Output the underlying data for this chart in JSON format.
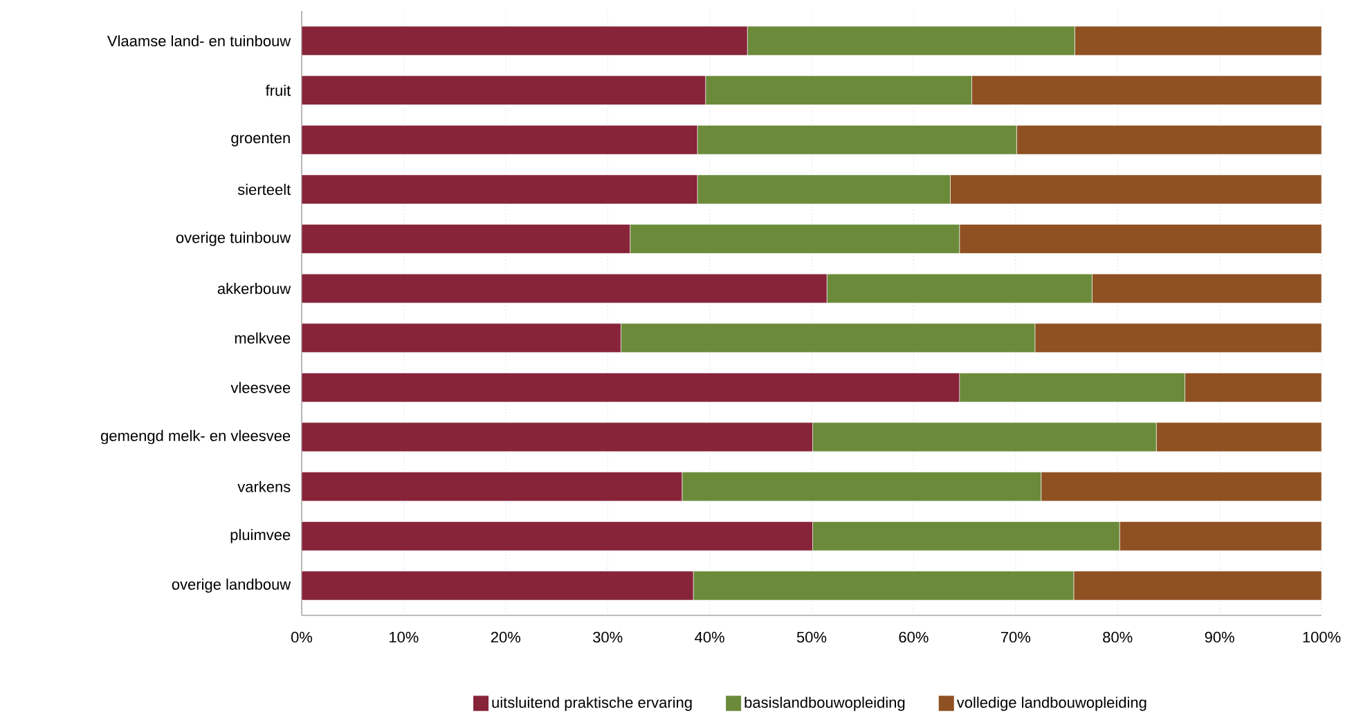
{
  "chart_data": {
    "type": "bar",
    "orientation": "horizontal",
    "stacked": true,
    "categories": [
      "Vlaamse land- en tuinbouw",
      "fruit",
      "groenten",
      "sierteelt",
      "overige tuinbouw",
      "akkerbouw",
      "melkvee",
      "vleesvee",
      "gemengd melk- en vleesvee",
      "varkens",
      "pluimvee",
      "overige landbouw"
    ],
    "series": [
      {
        "name": "uitsluitend praktische ervaring",
        "color": "#87243a",
        "values": [
          43.7,
          39.6,
          38.8,
          38.8,
          32.2,
          51.5,
          31.3,
          64.5,
          50.1,
          37.3,
          50.1,
          38.4
        ]
      },
      {
        "name": "basislandbouwopleiding",
        "color": "#6b8b3a",
        "values": [
          32.1,
          26.1,
          31.3,
          24.8,
          32.3,
          26.0,
          40.6,
          22.1,
          33.7,
          35.2,
          30.1,
          37.3
        ]
      },
      {
        "name": "volledige landbouwopleiding",
        "color": "#8f5022",
        "values": [
          24.2,
          34.3,
          29.9,
          36.4,
          35.5,
          22.5,
          28.1,
          13.4,
          16.2,
          27.5,
          19.8,
          24.3
        ]
      }
    ],
    "xlim": [
      0,
      100
    ],
    "xticks": [
      {
        "value": 0,
        "label": "0%"
      },
      {
        "value": 10,
        "label": "10%"
      },
      {
        "value": 20,
        "label": "20%"
      },
      {
        "value": 30,
        "label": "30%"
      },
      {
        "value": 40,
        "label": "40%"
      },
      {
        "value": 50,
        "label": "50%"
      },
      {
        "value": 60,
        "label": "60%"
      },
      {
        "value": 70,
        "label": "70%"
      },
      {
        "value": 80,
        "label": "80%"
      },
      {
        "value": 90,
        "label": "90%"
      },
      {
        "value": 100,
        "label": "100%"
      }
    ],
    "grid": "x",
    "legend": "bottom"
  }
}
